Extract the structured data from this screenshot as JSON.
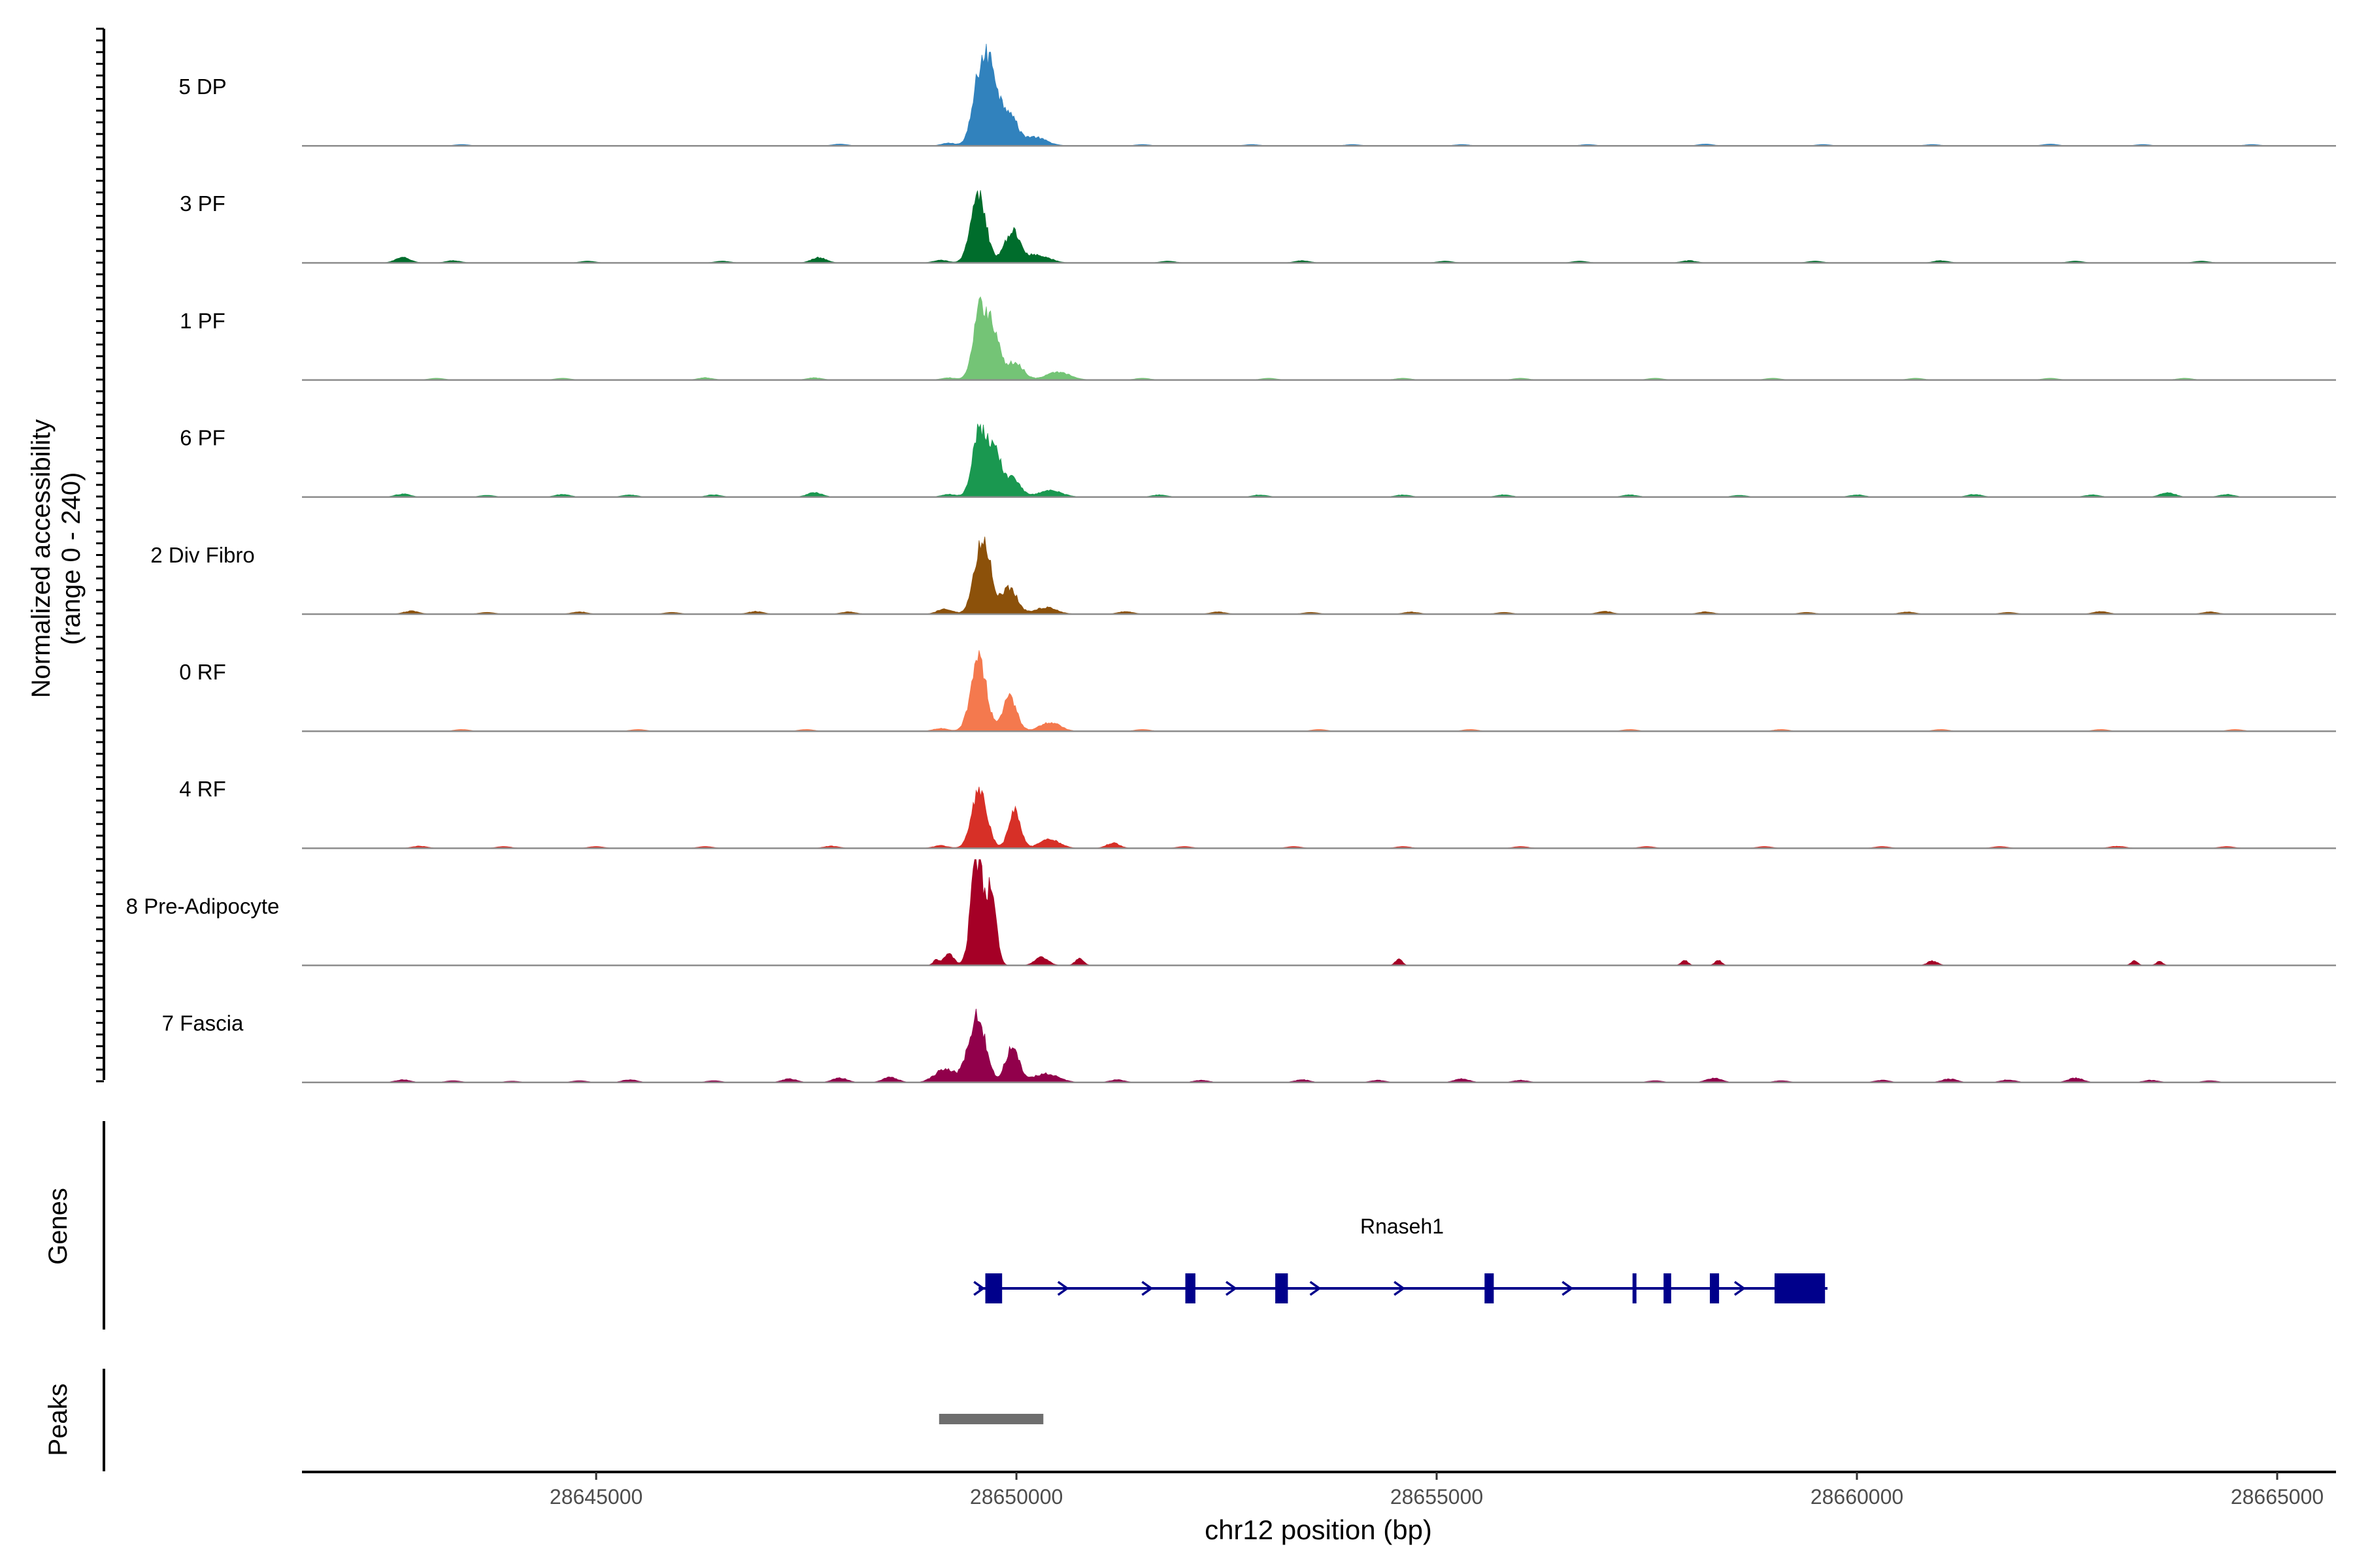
{
  "chart_data": {
    "type": "area",
    "title": "",
    "ylabel_line1": "Normalized accessibility",
    "ylabel_line2": "(range 0 - 240)",
    "y_range": [
      0,
      240
    ],
    "xlabel": "chr12 position (bp)",
    "xlim": [
      28641500,
      28665700
    ],
    "x_ticks": [
      28645000,
      28650000,
      28655000,
      28660000,
      28665000
    ],
    "x_tick_labels": [
      "28645000",
      "28650000",
      "28655000",
      "28660000",
      "28665000"
    ],
    "tracks": [
      {
        "name": "5 DP",
        "color": "#3182BD",
        "peaks": [
          [
            28649580,
            175,
            90
          ],
          [
            28649720,
            120,
            70
          ],
          [
            28649900,
            80,
            90
          ],
          [
            28650200,
            20,
            150
          ]
        ],
        "bumps": [
          [
            28643400,
            3
          ],
          [
            28647900,
            4
          ],
          [
            28649200,
            6
          ],
          [
            28651500,
            3
          ],
          [
            28652800,
            3
          ],
          [
            28654000,
            3
          ],
          [
            28655300,
            3
          ],
          [
            28656800,
            3
          ],
          [
            28658200,
            4
          ],
          [
            28659600,
            3
          ],
          [
            28660900,
            3
          ],
          [
            28662300,
            4
          ],
          [
            28663400,
            3
          ],
          [
            28664700,
            3
          ]
        ]
      },
      {
        "name": "3 PF",
        "color": "#006D2C",
        "peaks": [
          [
            28649550,
            150,
            90
          ],
          [
            28649950,
            70,
            90
          ],
          [
            28650250,
            18,
            140
          ]
        ],
        "bumps": [
          [
            28642700,
            12
          ],
          [
            28643300,
            5
          ],
          [
            28644900,
            4
          ],
          [
            28646500,
            4
          ],
          [
            28647650,
            12
          ],
          [
            28649100,
            6
          ],
          [
            28651800,
            4
          ],
          [
            28653400,
            5
          ],
          [
            28655100,
            4
          ],
          [
            28656700,
            4
          ],
          [
            28658000,
            5
          ],
          [
            28659500,
            4
          ],
          [
            28661000,
            5
          ],
          [
            28662600,
            4
          ],
          [
            28664100,
            4
          ]
        ]
      },
      {
        "name": "1 PF",
        "color": "#74C476",
        "peaks": [
          [
            28649580,
            165,
            85
          ],
          [
            28649740,
            90,
            70
          ],
          [
            28649980,
            40,
            100
          ],
          [
            28650500,
            18,
            140
          ]
        ],
        "bumps": [
          [
            28643100,
            4
          ],
          [
            28644600,
            4
          ],
          [
            28646300,
            5
          ],
          [
            28647600,
            5
          ],
          [
            28649200,
            5
          ],
          [
            28651500,
            4
          ],
          [
            28653000,
            4
          ],
          [
            28654600,
            4
          ],
          [
            28656000,
            4
          ],
          [
            28657600,
            4
          ],
          [
            28659000,
            4
          ],
          [
            28660700,
            4
          ],
          [
            28662300,
            4
          ],
          [
            28663900,
            4
          ]
        ]
      },
      {
        "name": "6 PF",
        "color": "#1A9850",
        "peaks": [
          [
            28649560,
            160,
            80
          ],
          [
            28649740,
            110,
            70
          ],
          [
            28649950,
            45,
            90
          ],
          [
            28650400,
            15,
            140
          ]
        ],
        "bumps": [
          [
            28642700,
            7
          ],
          [
            28643700,
            4
          ],
          [
            28644600,
            6
          ],
          [
            28645400,
            5
          ],
          [
            28646400,
            5
          ],
          [
            28647600,
            10
          ],
          [
            28649200,
            6
          ],
          [
            28651700,
            5
          ],
          [
            28652900,
            5
          ],
          [
            28654600,
            5
          ],
          [
            28655800,
            5
          ],
          [
            28657300,
            5
          ],
          [
            28658600,
            4
          ],
          [
            28660000,
            5
          ],
          [
            28661400,
            6
          ],
          [
            28662800,
            5
          ],
          [
            28663700,
            10
          ],
          [
            28664400,
            6
          ]
        ]
      },
      {
        "name": "2 Div Fibro",
        "color": "#8C510A",
        "peaks": [
          [
            28649600,
            170,
            95
          ],
          [
            28649920,
            60,
            90
          ],
          [
            28650350,
            15,
            130
          ]
        ],
        "bumps": [
          [
            28642800,
            7
          ],
          [
            28643700,
            4
          ],
          [
            28644800,
            5
          ],
          [
            28645900,
            4
          ],
          [
            28646900,
            6
          ],
          [
            28648000,
            5
          ],
          [
            28649150,
            12
          ],
          [
            28651300,
            6
          ],
          [
            28652400,
            5
          ],
          [
            28653500,
            4
          ],
          [
            28654700,
            5
          ],
          [
            28655800,
            4
          ],
          [
            28657000,
            6
          ],
          [
            28658200,
            5
          ],
          [
            28659400,
            4
          ],
          [
            28660600,
            5
          ],
          [
            28661800,
            4
          ],
          [
            28662900,
            6
          ],
          [
            28664200,
            5
          ]
        ]
      },
      {
        "name": "0 RF",
        "color": "#F4794E",
        "peaks": [
          [
            28649550,
            170,
            90
          ],
          [
            28649920,
            75,
            85
          ],
          [
            28650400,
            20,
            120
          ]
        ],
        "bumps": [
          [
            28643400,
            4
          ],
          [
            28645500,
            4
          ],
          [
            28647500,
            4
          ],
          [
            28649100,
            6
          ],
          [
            28651500,
            4
          ],
          [
            28653600,
            4
          ],
          [
            28655400,
            4
          ],
          [
            28657300,
            4
          ],
          [
            28659100,
            4
          ],
          [
            28661000,
            4
          ],
          [
            28662900,
            4
          ],
          [
            28664500,
            4
          ]
        ]
      },
      {
        "name": "4 RF",
        "color": "#D73027",
        "peaks": [
          [
            28649560,
            130,
            90
          ],
          [
            28649980,
            85,
            70
          ],
          [
            28650400,
            20,
            120
          ],
          [
            28651150,
            12,
            80
          ]
        ],
        "bumps": [
          [
            28642900,
            5
          ],
          [
            28643900,
            4
          ],
          [
            28645000,
            4
          ],
          [
            28646300,
            4
          ],
          [
            28647800,
            5
          ],
          [
            28649100,
            6
          ],
          [
            28652000,
            4
          ],
          [
            28653300,
            4
          ],
          [
            28654600,
            4
          ],
          [
            28656000,
            4
          ],
          [
            28657500,
            4
          ],
          [
            28658900,
            4
          ],
          [
            28660300,
            4
          ],
          [
            28661700,
            4
          ],
          [
            28663100,
            5
          ],
          [
            28664400,
            4
          ]
        ]
      },
      {
        "name": "8 Pre-Adipocyte",
        "color": "#A50026",
        "peaks": [
          [
            28649530,
            240,
            70
          ],
          [
            28649700,
            160,
            60
          ],
          [
            28649200,
            25,
            60
          ],
          [
            28649050,
            12,
            40
          ],
          [
            28650300,
            18,
            80
          ],
          [
            28650750,
            15,
            50
          ],
          [
            28654550,
            15,
            40
          ],
          [
            28657950,
            12,
            40
          ],
          [
            28658350,
            12,
            40
          ],
          [
            28660900,
            10,
            60
          ],
          [
            28663300,
            10,
            40
          ],
          [
            28663600,
            9,
            40
          ]
        ],
        "bumps": []
      },
      {
        "name": "7 Fascia",
        "color": "#91004B",
        "peaks": [
          [
            28649530,
            150,
            100
          ],
          [
            28649950,
            80,
            80
          ],
          [
            28649150,
            30,
            120
          ],
          [
            28650350,
            20,
            150
          ]
        ],
        "bumps": [
          [
            28642700,
            6
          ],
          [
            28643300,
            4
          ],
          [
            28644000,
            3
          ],
          [
            28644800,
            4
          ],
          [
            28645400,
            6
          ],
          [
            28646400,
            4
          ],
          [
            28647300,
            8
          ],
          [
            28647900,
            10
          ],
          [
            28648500,
            12
          ],
          [
            28651200,
            6
          ],
          [
            28652200,
            5
          ],
          [
            28653400,
            6
          ],
          [
            28654300,
            5
          ],
          [
            28655300,
            8
          ],
          [
            28656000,
            5
          ],
          [
            28657600,
            4
          ],
          [
            28658300,
            10
          ],
          [
            28659100,
            4
          ],
          [
            28660300,
            5
          ],
          [
            28661100,
            8
          ],
          [
            28661800,
            6
          ],
          [
            28662600,
            10
          ],
          [
            28663500,
            5
          ],
          [
            28664200,
            4
          ]
        ]
      }
    ],
    "genes_track": {
      "label": "Genes",
      "gene_name": "Rnaseh1",
      "color": "#00008B",
      "start": 28649550,
      "end": 28659650,
      "exons": [
        [
          28649630,
          28649830
        ],
        [
          28652010,
          28652130
        ],
        [
          28653080,
          28653230
        ],
        [
          28655570,
          28655680
        ],
        [
          28657330,
          28657370
        ],
        [
          28657700,
          28657790
        ],
        [
          28658250,
          28658360
        ],
        [
          28659020,
          28659620
        ]
      ],
      "arrows": [
        28649550,
        28650550,
        28651550,
        28652550,
        28653550,
        28654550,
        28656550,
        28658600
      ]
    },
    "peaks_track": {
      "label": "Peaks",
      "color": "#6E6E6E",
      "regions": [
        [
          28649080,
          28650320
        ]
      ]
    }
  }
}
